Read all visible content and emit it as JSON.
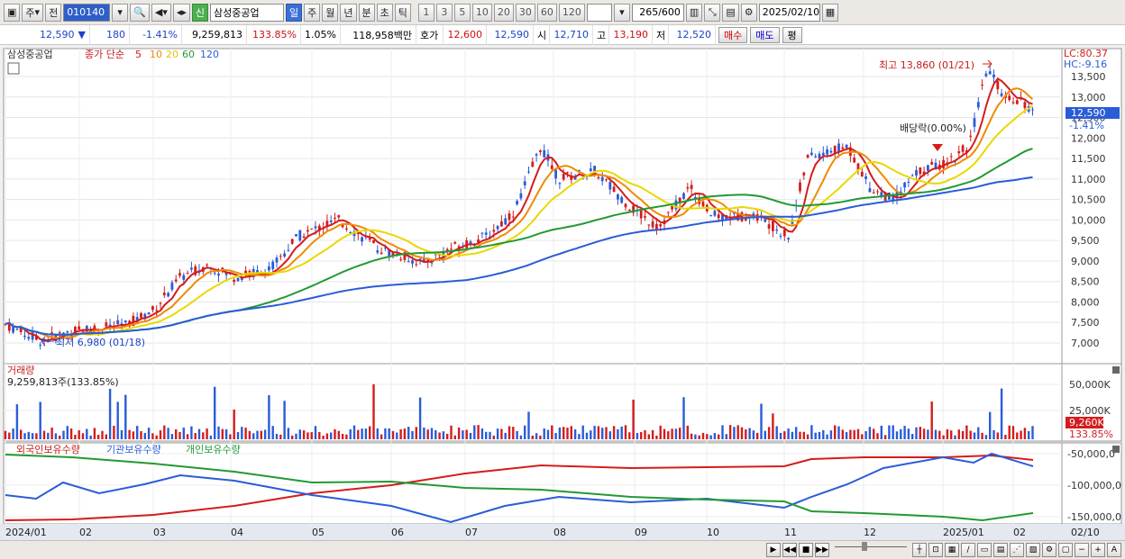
{
  "toolbar": {
    "period_label": "주",
    "prev_label": "전",
    "stock_code": "010140",
    "flag_label": "신",
    "stock_name": "삼성중공업",
    "periods": [
      "일",
      "주",
      "월",
      "년",
      "분",
      "초",
      "틱"
    ],
    "intervals": [
      "1",
      "3",
      "5",
      "10",
      "20",
      "30",
      "60",
      "120"
    ],
    "count": "265",
    "total": "/600",
    "date": "2025/02/10"
  },
  "quote": {
    "price": "12,590",
    "arrow": "▼",
    "change": "180",
    "change_pct": "-1.41%",
    "volume": "9,259,813",
    "volume_ratio": "133.85%",
    "turnover_pct": "1.05%",
    "amount": "118,958백만",
    "bid_label": "호가",
    "ask": "12,600",
    "bid": "12,590",
    "open_label": "시",
    "open": "12,710",
    "high_label": "고",
    "high": "13,190",
    "low_label": "저",
    "low": "12,520",
    "buy_label": "매수",
    "sell_label": "매도",
    "eval_label": "평"
  },
  "price_panel": {
    "stock_name": "삼성중공업",
    "legend_prefix": "종가 단순",
    "ma_periods": [
      "5",
      "10",
      "20",
      "60",
      "120"
    ],
    "ma_colors": [
      "#d41c1c",
      "#f08a00",
      "#e8d800",
      "#229933",
      "#2a5cd8"
    ],
    "lc": "LC:80.37",
    "hc": "HC:-9.16",
    "y_ticks": [
      "13,500",
      "13,000",
      "12,500",
      "12,000",
      "11,500",
      "11,000",
      "10,500",
      "10,000",
      "9,500",
      "9,000",
      "8,500",
      "8,000",
      "7,500",
      "7,000"
    ],
    "last_price": "12,590",
    "last_change": "-1.41%",
    "max_label": "최고 13,860 (01/21)",
    "min_label": "최저 6,980 (01/18)",
    "dividend_label": "배당락(0.00%)"
  },
  "volume_panel": {
    "title": "거래량",
    "value_label": "9,259,813주(133.85%)",
    "y_ticks": [
      "50,000K",
      "25,000K"
    ],
    "last_volume": "9,260K",
    "last_ratio": "133.85%"
  },
  "holdings_panel": {
    "legend": [
      "외국인보유수량",
      "기관보유수량",
      "개인보유수량"
    ],
    "colors": [
      "#d41c1c",
      "#2a5cd8",
      "#229933"
    ],
    "y_ticks": [
      "-50,000,0",
      "-100,000,0",
      "-150,000,0"
    ]
  },
  "x_axis": {
    "labels": [
      "2024/01",
      "02",
      "03",
      "04",
      "05",
      "06",
      "07",
      "08",
      "09",
      "10",
      "11",
      "12",
      "2025/01",
      "02"
    ],
    "end_label": "02/10"
  }
}
